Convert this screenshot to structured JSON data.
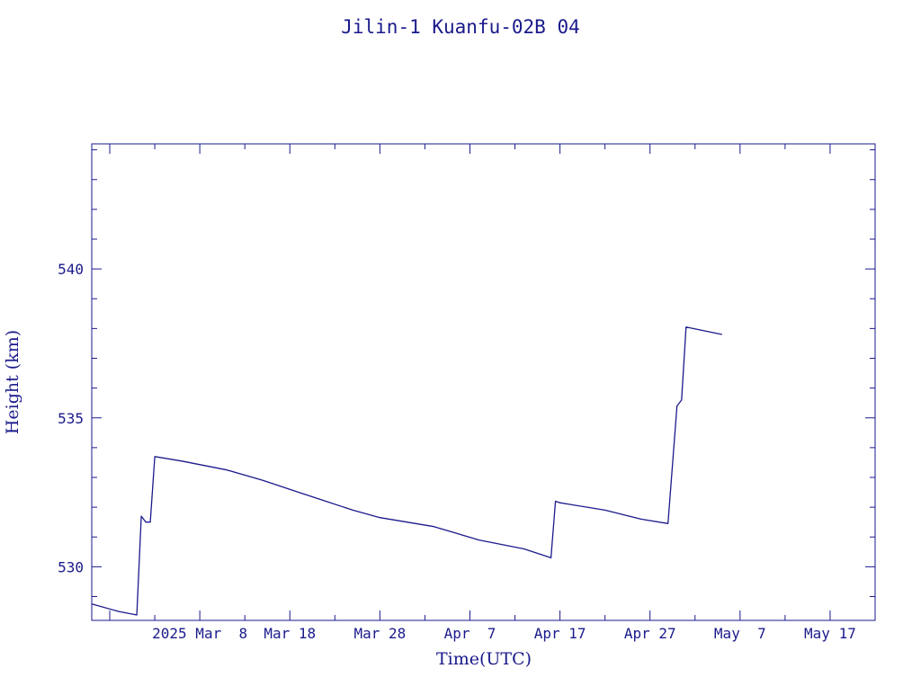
{
  "chart_data": {
    "type": "line",
    "title": "Jilin-1 Kuanfu-02B 04",
    "xlabel": "Time(UTC)",
    "ylabel": "Height (km)",
    "color": "#1a1a8c",
    "x_tick_labels": [
      "2025 Mar  8",
      "Mar 18",
      "Mar 28",
      "Apr  7",
      "Apr 17",
      "Apr 27",
      "May  7",
      "May 17"
    ],
    "y_tick_labels": [
      "530",
      "535",
      "540"
    ],
    "xlim": [
      "2025-02-24",
      "2025-05-22"
    ],
    "ylim": [
      528.2,
      544.2
    ],
    "grid": false,
    "series": [
      {
        "points": [
          [
            "2025-02-24",
            528.75
          ],
          [
            "2025-02-27",
            528.5
          ],
          [
            "2025-03-01",
            528.38
          ],
          [
            "2025-03-01T12:00",
            531.7
          ],
          [
            "2025-03-02",
            531.5
          ],
          [
            "2025-03-02T12:00",
            531.5
          ],
          [
            "2025-03-03",
            533.7
          ],
          [
            "2025-03-06",
            533.55
          ],
          [
            "2025-03-11",
            533.25
          ],
          [
            "2025-03-15",
            532.9
          ],
          [
            "2025-03-19",
            532.5
          ],
          [
            "2025-03-22",
            532.2
          ],
          [
            "2025-03-25",
            531.9
          ],
          [
            "2025-03-28",
            531.65
          ],
          [
            "2025-04-03",
            531.35
          ],
          [
            "2025-04-08",
            530.9
          ],
          [
            "2025-04-13",
            530.6
          ],
          [
            "2025-04-16",
            530.3
          ],
          [
            "2025-04-16T12:00",
            532.2
          ],
          [
            "2025-04-17",
            532.15
          ],
          [
            "2025-04-22",
            531.9
          ],
          [
            "2025-04-26",
            531.6
          ],
          [
            "2025-04-29",
            531.45
          ],
          [
            "2025-04-30",
            535.4
          ],
          [
            "2025-04-30T12:00",
            535.6
          ],
          [
            "2025-05-01",
            538.05
          ],
          [
            "2025-05-05",
            537.8
          ]
        ]
      }
    ]
  }
}
